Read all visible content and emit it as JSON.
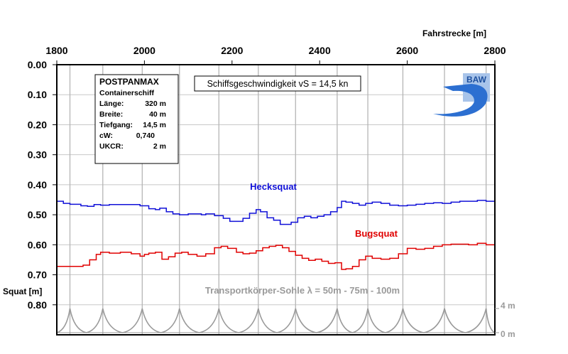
{
  "chart_data": {
    "type": "line",
    "x_axis": {
      "label": "Fahrstrecke [m]",
      "range": [
        1800,
        2800
      ],
      "ticks": [
        "1800",
        "2000",
        "2200",
        "2400",
        "2600",
        "2800"
      ],
      "position": "top"
    },
    "y_axis": {
      "label": "Squat [m]",
      "range": [
        0.0,
        0.9
      ],
      "inverted": true,
      "ticks": [
        "0.00",
        "0.10",
        "0.20",
        "0.30",
        "0.40",
        "0.50",
        "0.60",
        "0.70",
        "0.80"
      ]
    },
    "secondary_axis": {
      "labels": [
        "4 m",
        "0 m"
      ],
      "side": "right"
    },
    "vessel_box": {
      "name": "POSTPANMAX",
      "type": "Containerschiff",
      "rows": [
        {
          "key": "Länge:",
          "value": "320 m"
        },
        {
          "key": "Breite:",
          "value": "40 m"
        },
        {
          "key": "Tiefgang:",
          "value": "14,5 m"
        },
        {
          "key": "cW:",
          "value": "0,740"
        },
        {
          "key": "UKCR:",
          "value": "2 m"
        }
      ]
    },
    "speed_label": "Schiffsgeschwindigkeit vS = 14,5 kn",
    "bed_label": "Transportkörper-Sohle λ = 50m - 75m - 100m",
    "logo_text": "BAW",
    "grid": true,
    "series": [
      {
        "name": "Hecksquat",
        "color": "#1010d8",
        "x": [
          1800,
          1815,
          1830,
          1845,
          1855,
          1870,
          1885,
          1900,
          1920,
          1945,
          1970,
          1990,
          2010,
          2025,
          2035,
          2050,
          2065,
          2080,
          2100,
          2115,
          2130,
          2140,
          2160,
          2180,
          2195,
          2210,
          2225,
          2240,
          2255,
          2265,
          2280,
          2295,
          2310,
          2320,
          2335,
          2350,
          2365,
          2380,
          2395,
          2410,
          2425,
          2440,
          2450,
          2460,
          2475,
          2490,
          2505,
          2520,
          2540,
          2560,
          2580,
          2600,
          2620,
          2640,
          2660,
          2680,
          2700,
          2720,
          2740,
          2760,
          2780,
          2800
        ],
        "values": [
          0.455,
          0.462,
          0.465,
          0.465,
          0.47,
          0.472,
          0.466,
          0.468,
          0.466,
          0.466,
          0.466,
          0.47,
          0.48,
          0.483,
          0.478,
          0.49,
          0.497,
          0.5,
          0.497,
          0.497,
          0.5,
          0.497,
          0.503,
          0.512,
          0.522,
          0.522,
          0.512,
          0.495,
          0.483,
          0.49,
          0.51,
          0.518,
          0.532,
          0.532,
          0.525,
          0.51,
          0.505,
          0.51,
          0.505,
          0.5,
          0.49,
          0.476,
          0.455,
          0.458,
          0.462,
          0.468,
          0.462,
          0.458,
          0.462,
          0.468,
          0.47,
          0.468,
          0.465,
          0.462,
          0.46,
          0.462,
          0.458,
          0.455,
          0.455,
          0.452,
          0.455,
          0.452
        ]
      },
      {
        "name": "Bugsquat",
        "color": "#e00000",
        "x": [
          1800,
          1815,
          1830,
          1845,
          1860,
          1875,
          1890,
          1900,
          1920,
          1945,
          1970,
          1990,
          2000,
          2010,
          2025,
          2040,
          2055,
          2070,
          2085,
          2100,
          2120,
          2140,
          2160,
          2175,
          2190,
          2210,
          2225,
          2240,
          2255,
          2270,
          2285,
          2300,
          2315,
          2330,
          2345,
          2360,
          2375,
          2390,
          2405,
          2420,
          2435,
          2450,
          2460,
          2475,
          2490,
          2505,
          2520,
          2540,
          2560,
          2580,
          2600,
          2620,
          2640,
          2660,
          2680,
          2700,
          2720,
          2740,
          2760,
          2780,
          2800
        ],
        "values": [
          0.672,
          0.672,
          0.672,
          0.672,
          0.668,
          0.65,
          0.632,
          0.625,
          0.628,
          0.625,
          0.63,
          0.638,
          0.632,
          0.628,
          0.625,
          0.648,
          0.64,
          0.628,
          0.625,
          0.632,
          0.638,
          0.63,
          0.61,
          0.605,
          0.612,
          0.625,
          0.63,
          0.628,
          0.62,
          0.61,
          0.605,
          0.602,
          0.61,
          0.622,
          0.635,
          0.645,
          0.652,
          0.648,
          0.655,
          0.662,
          0.66,
          0.682,
          0.68,
          0.672,
          0.65,
          0.638,
          0.645,
          0.648,
          0.645,
          0.63,
          0.612,
          0.615,
          0.612,
          0.605,
          0.6,
          0.598,
          0.598,
          0.6,
          0.595,
          0.6,
          0.608
        ]
      }
    ],
    "bed_profile": {
      "color": "#9a9a9a",
      "peaks": [
        1830,
        1905,
        1995,
        2080,
        2170,
        2260,
        2345,
        2440,
        2510,
        2590,
        2685,
        2780
      ]
    }
  }
}
